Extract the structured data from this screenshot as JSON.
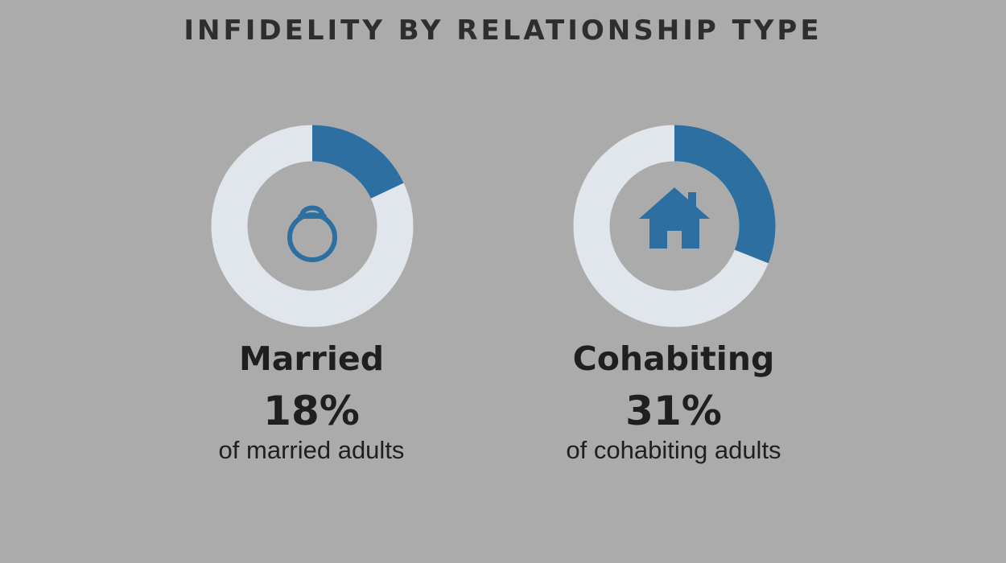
{
  "title": "INFIDELITY BY RELATIONSHIP TYPE",
  "colors": {
    "background": "#ababab",
    "ring_track": "#e0e6ec",
    "ring_fill": "#2e6fa1",
    "icon": "#2e6fa1",
    "text": "#1f1f1f"
  },
  "panels": [
    {
      "name": "Married",
      "value_text": "18%",
      "subtitle": "of married adults",
      "icon": "ring-icon"
    },
    {
      "name": "Cohabiting",
      "value_text": "31%",
      "subtitle": "of cohabiting adults",
      "icon": "house-icon"
    }
  ],
  "chart_data": [
    {
      "type": "pie",
      "title": "INFIDELITY BY RELATIONSHIP TYPE",
      "categories": [
        "Married"
      ],
      "values": [
        18
      ],
      "unit": "%",
      "max": 100
    },
    {
      "type": "pie",
      "title": "INFIDELITY BY RELATIONSHIP TYPE",
      "categories": [
        "Cohabiting"
      ],
      "values": [
        31
      ],
      "unit": "%",
      "max": 100
    }
  ]
}
